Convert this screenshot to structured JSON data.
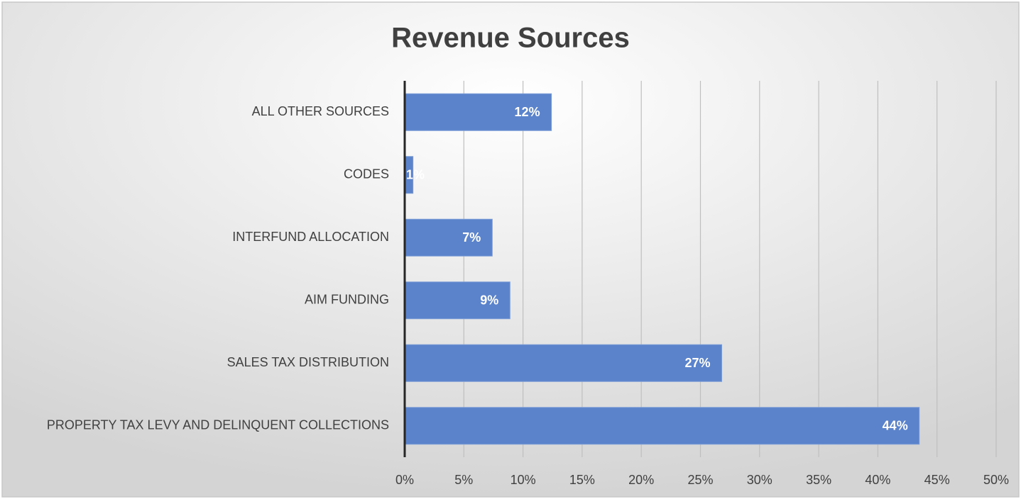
{
  "chart_data": {
    "type": "bar",
    "orientation": "horizontal",
    "title": "Revenue Sources",
    "categories": [
      "ALL OTHER SOURCES",
      "CODES",
      "INTERFUND ALLOCATION",
      "AIM FUNDING",
      "SALES TAX DISTRIBUTION",
      "PROPERTY TAX LEVY AND DELINQUENT COLLECTIONS"
    ],
    "values": [
      12.4,
      0.7,
      7.4,
      8.9,
      26.8,
      43.5
    ],
    "value_labels": [
      "12%",
      "1%",
      "7%",
      "9%",
      "27%",
      "44%"
    ],
    "color": "#5b83cc",
    "xlim": [
      0,
      50
    ],
    "xticks": [
      {
        "value": 0,
        "label": "0%"
      },
      {
        "value": 5,
        "label": "5%"
      },
      {
        "value": 10,
        "label": "10%"
      },
      {
        "value": 15,
        "label": "15%"
      },
      {
        "value": 20,
        "label": "20%"
      },
      {
        "value": 25,
        "label": "25%"
      },
      {
        "value": 30,
        "label": "30%"
      },
      {
        "value": 35,
        "label": "35%"
      },
      {
        "value": 40,
        "label": "40%"
      },
      {
        "value": 45,
        "label": "45%"
      },
      {
        "value": 50,
        "label": "50%"
      }
    ],
    "grid": true
  }
}
